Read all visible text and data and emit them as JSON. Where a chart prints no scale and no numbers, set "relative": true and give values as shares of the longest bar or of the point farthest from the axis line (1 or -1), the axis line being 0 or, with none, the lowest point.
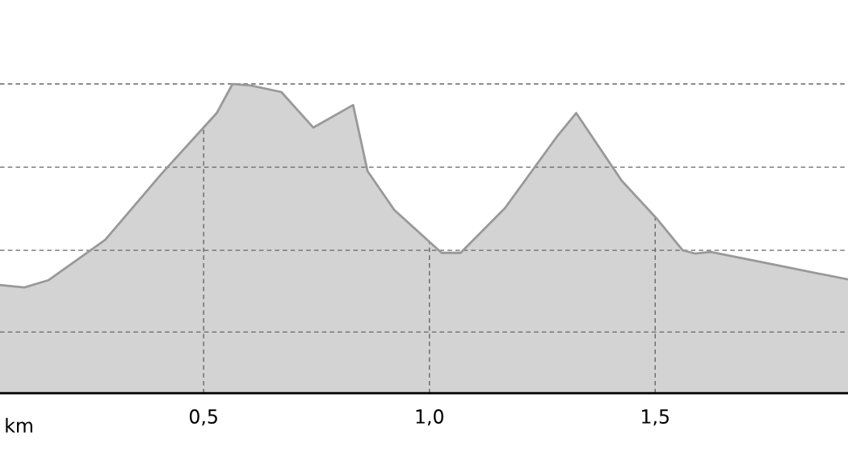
{
  "chart_data": {
    "type": "area",
    "relative": true,
    "xlabel": "km",
    "x": [
      0.049,
      0.103,
      0.157,
      0.282,
      0.407,
      0.529,
      0.564,
      0.604,
      0.672,
      0.743,
      0.831,
      0.863,
      0.922,
      1.027,
      1.069,
      1.167,
      1.284,
      1.325,
      1.426,
      1.502,
      1.561,
      1.588,
      1.623,
      1.766,
      1.927
    ],
    "series": [
      {
        "color": "#999999",
        "values": [
          0.35,
          0.342,
          0.366,
          0.496,
          0.71,
          0.906,
          1.0,
          0.995,
          0.974,
          0.859,
          0.932,
          0.718,
          0.593,
          0.454,
          0.454,
          0.598,
          0.833,
          0.906,
          0.687,
          0.567,
          0.462,
          0.452,
          0.457,
          0.415,
          0.368
        ]
      }
    ],
    "xlim": [
      0.049,
      1.927
    ],
    "xticks": [
      {
        "value": 0.5,
        "label": "0,5"
      },
      {
        "value": 1.0,
        "label": "1,0"
      },
      {
        "value": 1.5,
        "label": "1,5"
      }
    ],
    "grid": true
  }
}
